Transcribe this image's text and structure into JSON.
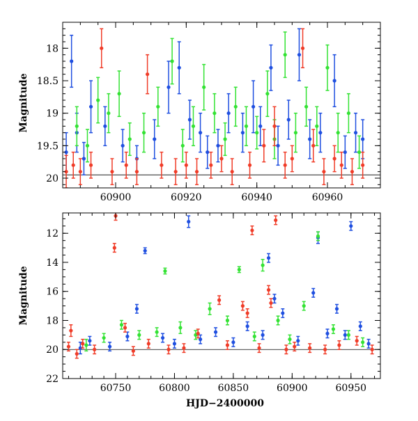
{
  "chart_data": [
    {
      "type": "scatter",
      "title": "",
      "xlabel": "",
      "ylabel": "Magnitude",
      "xlim": [
        60885,
        60975
      ],
      "ylim": [
        20.15,
        17.6
      ],
      "y_inverted": true,
      "xticks": [
        60900,
        60920,
        60940,
        60960
      ],
      "xtick_labels": [
        "60900",
        "60920",
        "60940",
        "60960"
      ],
      "yticks": [
        18,
        18.5,
        19,
        19.5,
        20
      ],
      "ytick_labels": [
        "18",
        "18.5",
        "19",
        "19.5",
        "20"
      ],
      "grid": false,
      "legend": "none",
      "series": [
        {
          "color": "#1f4fe0",
          "x": [
            60886,
            60887.5,
            60889,
            60891,
            60893,
            60897,
            60902,
            60906,
            60911,
            60915,
            60918,
            60921,
            60924,
            60926,
            60929,
            60932,
            60936,
            60939,
            60941,
            60944,
            60946,
            60949,
            60952,
            60955,
            60958,
            60962,
            60965,
            60968,
            60970
          ],
          "y": [
            19.6,
            18.2,
            19.3,
            19.7,
            18.9,
            19.2,
            19.5,
            19.7,
            19.4,
            18.6,
            18.3,
            19.1,
            19.3,
            19.6,
            19.5,
            19.0,
            19.3,
            18.9,
            19.2,
            18.3,
            19.5,
            19.1,
            18.1,
            19.4,
            19.3,
            18.5,
            19.6,
            19.3,
            19.4
          ],
          "err": [
            0.3,
            0.4,
            0.3,
            0.25,
            0.4,
            0.3,
            0.25,
            0.2,
            0.3,
            0.4,
            0.4,
            0.3,
            0.3,
            0.25,
            0.25,
            0.3,
            0.3,
            0.4,
            0.3,
            0.35,
            0.3,
            0.3,
            0.4,
            0.3,
            0.3,
            0.4,
            0.25,
            0.3,
            0.3
          ]
        },
        {
          "color": "#33e233",
          "x": [
            60889,
            60892,
            60895,
            60898,
            60901,
            60904,
            60908,
            60912,
            60916,
            60919,
            60922,
            60925,
            60928,
            60931,
            60934,
            60937,
            60940,
            60943,
            60945,
            60948,
            60951,
            60954,
            60957,
            60960,
            60963,
            60966,
            60969
          ],
          "y": [
            19.2,
            19.5,
            18.8,
            19.0,
            18.7,
            19.4,
            19.3,
            18.9,
            18.2,
            19.5,
            19.2,
            18.6,
            19.0,
            19.4,
            18.9,
            19.2,
            19.3,
            18.7,
            19.4,
            18.1,
            19.3,
            18.9,
            19.2,
            18.3,
            19.3,
            19.0,
            19.6
          ],
          "err": [
            0.3,
            0.25,
            0.35,
            0.3,
            0.35,
            0.25,
            0.3,
            0.3,
            0.35,
            0.25,
            0.3,
            0.35,
            0.3,
            0.25,
            0.3,
            0.3,
            0.25,
            0.35,
            0.3,
            0.35,
            0.3,
            0.3,
            0.3,
            0.35,
            0.3,
            0.3,
            0.25
          ]
        },
        {
          "color": "#f03c28",
          "x": [
            60886,
            60888,
            60890,
            60893,
            60896,
            60899,
            60903,
            60906,
            60909,
            60913,
            60917,
            60920,
            60923,
            60927,
            60930,
            60933,
            60938,
            60942,
            60945,
            60948,
            60950,
            60953,
            60956,
            60959,
            60962,
            60964,
            60967,
            60970
          ],
          "y": [
            19.9,
            19.8,
            19.9,
            19.8,
            18.0,
            19.9,
            19.8,
            19.9,
            18.4,
            19.8,
            19.9,
            19.8,
            19.9,
            19.8,
            19.7,
            19.9,
            19.8,
            19.5,
            19.2,
            19.8,
            19.7,
            18.0,
            19.5,
            19.9,
            19.7,
            19.8,
            19.9,
            19.8
          ],
          "err": [
            0.25,
            0.2,
            0.2,
            0.2,
            0.3,
            0.2,
            0.2,
            0.2,
            0.3,
            0.2,
            0.2,
            0.2,
            0.2,
            0.2,
            0.2,
            0.2,
            0.2,
            0.25,
            0.3,
            0.2,
            0.2,
            0.3,
            0.25,
            0.2,
            0.2,
            0.2,
            0.2,
            0.2
          ]
        }
      ]
    },
    {
      "type": "scatter",
      "title": "",
      "xlabel": "HJD−2400000",
      "ylabel": "Magnitude",
      "xlim": [
        60705,
        60975
      ],
      "ylim": [
        22,
        10.6
      ],
      "y_inverted": true,
      "xticks": [
        60750,
        60800,
        60850,
        60900,
        60950
      ],
      "xtick_labels": [
        "60750",
        "60800",
        "60850",
        "60900",
        "60950"
      ],
      "yticks": [
        12,
        14,
        16,
        18,
        20,
        22
      ],
      "ytick_labels": [
        "12",
        "14",
        "16",
        "18",
        "20",
        "22"
      ],
      "grid": false,
      "legend": "none",
      "series": [
        {
          "color": "#1f4fe0",
          "x": [
            60720,
            60728,
            60745,
            60760,
            60768,
            60775,
            60790,
            60800,
            60812,
            60822,
            60835,
            60850,
            60862,
            60875,
            60880,
            60885,
            60892,
            60905,
            60918,
            60922,
            60930,
            60938,
            60945,
            60950,
            60958,
            60965
          ],
          "y": [
            19.9,
            19.4,
            19.8,
            19.1,
            17.2,
            13.2,
            19.2,
            19.6,
            11.2,
            19.3,
            18.8,
            19.5,
            18.4,
            19.0,
            13.7,
            16.5,
            17.5,
            19.4,
            16.1,
            12.3,
            18.9,
            17.2,
            19.0,
            11.5,
            18.4,
            19.6
          ],
          "err": [
            0.4,
            0.3,
            0.3,
            0.3,
            0.3,
            0.2,
            0.3,
            0.3,
            0.4,
            0.3,
            0.3,
            0.3,
            0.3,
            0.3,
            0.3,
            0.3,
            0.3,
            0.3,
            0.3,
            0.4,
            0.3,
            0.3,
            0.3,
            0.3,
            0.3,
            0.3
          ]
        },
        {
          "color": "#33e233",
          "x": [
            60725,
            60740,
            60755,
            60770,
            60785,
            60792,
            60805,
            60818,
            60830,
            60845,
            60855,
            60868,
            60875,
            60888,
            60898,
            60910,
            60922,
            60935,
            60948,
            60960
          ],
          "y": [
            19.7,
            19.2,
            18.3,
            19.0,
            18.8,
            14.6,
            18.5,
            19.0,
            17.2,
            18.0,
            14.5,
            19.1,
            14.2,
            18.0,
            19.3,
            17.0,
            12.2,
            18.6,
            19.0,
            19.5
          ],
          "err": [
            0.4,
            0.3,
            0.3,
            0.3,
            0.3,
            0.2,
            0.4,
            0.3,
            0.4,
            0.3,
            0.2,
            0.3,
            0.4,
            0.3,
            0.3,
            0.3,
            0.3,
            0.3,
            0.3,
            0.3
          ]
        },
        {
          "color": "#f03c28",
          "x": [
            60710,
            60712,
            60717,
            60722,
            60732,
            60749,
            60750,
            60758,
            60765,
            60778,
            60795,
            60808,
            60820,
            60838,
            60845,
            60858,
            60862,
            60866,
            60872,
            60880,
            60882,
            60886,
            60895,
            60902,
            60915,
            60928,
            60940,
            60955,
            60968
          ],
          "y": [
            19.8,
            18.7,
            20.3,
            19.6,
            20.0,
            13.0,
            10.8,
            18.5,
            20.1,
            19.6,
            20.0,
            19.9,
            18.9,
            16.6,
            19.7,
            17.0,
            17.5,
            11.8,
            19.9,
            15.9,
            16.8,
            11.1,
            20.0,
            19.8,
            19.9,
            20.0,
            19.7,
            19.4,
            20.0
          ],
          "err": [
            0.3,
            0.4,
            0.3,
            0.3,
            0.3,
            0.3,
            0.3,
            0.3,
            0.3,
            0.3,
            0.3,
            0.3,
            0.3,
            0.3,
            0.3,
            0.3,
            0.3,
            0.3,
            0.3,
            0.3,
            0.3,
            0.3,
            0.3,
            0.3,
            0.3,
            0.3,
            0.3,
            0.3,
            0.3
          ]
        }
      ]
    }
  ]
}
